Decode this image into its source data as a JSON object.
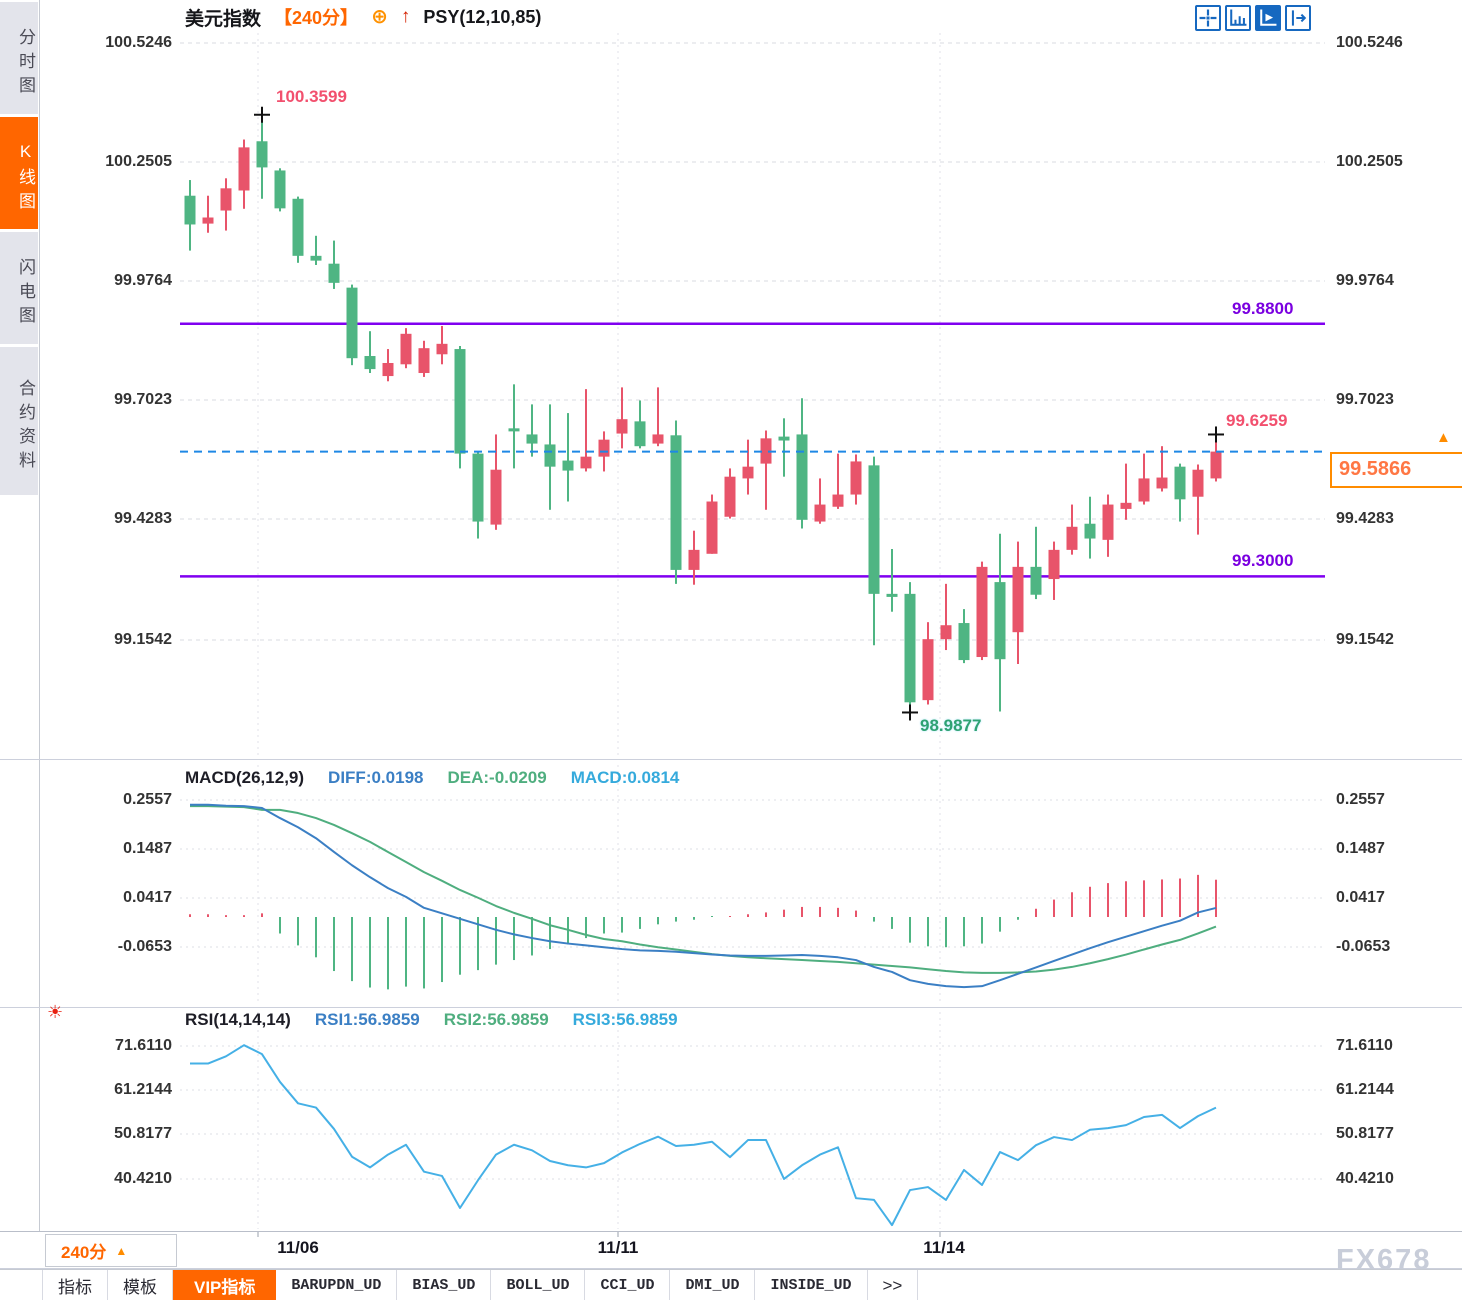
{
  "watermark": {
    "text": "FX678"
  },
  "sidebar": {
    "tabs": [
      {
        "label": "分时图",
        "active": false
      },
      {
        "label": "K线图",
        "active": true
      },
      {
        "label": "闪电图",
        "active": false
      },
      {
        "label": "合约资料",
        "active": false
      }
    ]
  },
  "header": {
    "symbol": "美元指数",
    "period": "【240分】",
    "plus_icon": "⊕",
    "arrow_icon": "↑",
    "indicator": "PSY(12,10,85)"
  },
  "toolbar": {
    "icons": [
      "crosshair-tool",
      "axis-scale-tool",
      "auto-view-tool",
      "jump-latest-tool"
    ],
    "active_index": 2
  },
  "main_chart": {
    "y_axis_labels": [
      "100.5246",
      "100.2505",
      "99.9764",
      "99.7023",
      "99.4283",
      "99.1542"
    ],
    "level_labels": {
      "upper": "99.8800",
      "lower": "99.3000"
    },
    "annotations": {
      "high": "100.3599",
      "last_high": "99.6259",
      "low": "98.9877"
    },
    "current_price": {
      "label": "99.5866",
      "marker_icon": "▲"
    }
  },
  "macd_panel": {
    "title": "MACD(26,12,9)",
    "diff_label": "DIFF:0.0198",
    "dea_label": "DEA:-0.0209",
    "macd_label": "MACD:0.0814",
    "y_axis_labels": [
      "0.2557",
      "0.1487",
      "0.0417",
      "-0.0653"
    ]
  },
  "rsi_panel": {
    "title": "RSI(14,14,14)",
    "rsi1_label": "RSI1:56.9859",
    "rsi2_label": "RSI2:56.9859",
    "rsi3_label": "RSI3:56.9859",
    "hot_icon": "☀",
    "y_axis_labels": [
      "71.6110",
      "61.2144",
      "50.8177",
      "40.4210"
    ]
  },
  "x_axis": {
    "period_label": "240分",
    "period_arrow": "▲",
    "dates": [
      "11/06",
      "11/11",
      "11/14"
    ]
  },
  "bottom_tabs": [
    {
      "label": "指标",
      "style": "cn",
      "active": false
    },
    {
      "label": "模板",
      "style": "cn",
      "active": false
    },
    {
      "label": "VIP指标",
      "style": "cn",
      "active": true
    },
    {
      "label": "BARUPDN_UD",
      "style": "mono",
      "active": false
    },
    {
      "label": "BIAS_UD",
      "style": "mono",
      "active": false
    },
    {
      "label": "BOLL_UD",
      "style": "mono",
      "active": false
    },
    {
      "label": "CCI_UD",
      "style": "mono",
      "active": false
    },
    {
      "label": "DMI_UD",
      "style": "mono",
      "active": false
    },
    {
      "label": "INSIDE_UD",
      "style": "mono",
      "active": false
    },
    {
      "label": ">>",
      "style": "cn",
      "active": false
    }
  ],
  "chart_data": {
    "type": "candlestick",
    "symbol": "美元指数",
    "interval": "240分",
    "x_date_ticks": [
      "11/06",
      "11/11",
      "11/14"
    ],
    "y_axis_ticks": [
      100.5246,
      100.2505,
      99.9764,
      99.7023,
      99.4283,
      99.1542
    ],
    "hlines": [
      99.88,
      99.3
    ],
    "last_price": 99.5866,
    "high_annotation": 100.3599,
    "low_annotation": 98.9877,
    "last_high_annotation": 99.6259,
    "up_color": "#e8546a",
    "down_color": "#4fb583",
    "ohlc": [
      [
        100.174,
        100.21,
        100.048,
        100.108
      ],
      [
        100.11,
        100.174,
        100.089,
        100.124
      ],
      [
        100.14,
        100.214,
        100.094,
        100.191
      ],
      [
        100.186,
        100.303,
        100.144,
        100.285
      ],
      [
        100.299,
        100.3599,
        100.167,
        100.239
      ],
      [
        100.232,
        100.237,
        100.138,
        100.145
      ],
      [
        100.167,
        100.172,
        100.02,
        100.036
      ],
      [
        100.036,
        100.082,
        100.015,
        100.025
      ],
      [
        100.018,
        100.071,
        99.96,
        99.974
      ],
      [
        99.963,
        99.97,
        99.785,
        99.801
      ],
      [
        99.806,
        99.863,
        99.767,
        99.776
      ],
      [
        99.76,
        99.822,
        99.748,
        99.79
      ],
      [
        99.787,
        99.87,
        99.778,
        99.857
      ],
      [
        99.767,
        99.841,
        99.758,
        99.824
      ],
      [
        99.81,
        99.875,
        99.787,
        99.834
      ],
      [
        99.822,
        99.829,
        99.548,
        99.582
      ],
      [
        99.582,
        99.587,
        99.387,
        99.426
      ],
      [
        99.419,
        99.626,
        99.407,
        99.545
      ],
      [
        99.64,
        99.741,
        99.548,
        99.633
      ],
      [
        99.626,
        99.695,
        99.575,
        99.605
      ],
      [
        99.603,
        99.695,
        99.453,
        99.552
      ],
      [
        99.566,
        99.675,
        99.472,
        99.543
      ],
      [
        99.548,
        99.73,
        99.541,
        99.575
      ],
      [
        99.575,
        99.633,
        99.541,
        99.614
      ],
      [
        99.628,
        99.734,
        99.594,
        99.661
      ],
      [
        99.656,
        99.704,
        99.594,
        99.599
      ],
      [
        99.605,
        99.734,
        99.599,
        99.626
      ],
      [
        99.624,
        99.658,
        99.283,
        99.315
      ],
      [
        99.315,
        99.405,
        99.281,
        99.361
      ],
      [
        99.352,
        99.488,
        99.352,
        99.472
      ],
      [
        99.437,
        99.548,
        99.433,
        99.529
      ],
      [
        99.525,
        99.614,
        99.488,
        99.552
      ],
      [
        99.559,
        99.635,
        99.453,
        99.617
      ],
      [
        99.621,
        99.663,
        99.529,
        99.612
      ],
      [
        99.626,
        99.709,
        99.41,
        99.43
      ],
      [
        99.426,
        99.525,
        99.421,
        99.465
      ],
      [
        99.46,
        99.582,
        99.455,
        99.488
      ],
      [
        99.488,
        99.58,
        99.465,
        99.564
      ],
      [
        99.555,
        99.575,
        99.142,
        99.26
      ],
      [
        99.26,
        99.363,
        99.219,
        99.253
      ],
      [
        99.26,
        99.287,
        98.9877,
        99.011
      ],
      [
        99.016,
        99.195,
        99.006,
        99.156
      ],
      [
        99.156,
        99.283,
        99.131,
        99.188
      ],
      [
        99.193,
        99.225,
        99.101,
        99.108
      ],
      [
        99.115,
        99.334,
        99.108,
        99.322
      ],
      [
        99.287,
        99.398,
        98.99,
        99.11
      ],
      [
        99.172,
        99.38,
        99.099,
        99.322
      ],
      [
        99.322,
        99.414,
        99.248,
        99.258
      ],
      [
        99.294,
        99.38,
        99.246,
        99.361
      ],
      [
        99.361,
        99.465,
        99.35,
        99.414
      ],
      [
        99.421,
        99.483,
        99.341,
        99.387
      ],
      [
        99.384,
        99.488,
        99.345,
        99.465
      ],
      [
        99.455,
        99.559,
        99.43,
        99.469
      ],
      [
        99.472,
        99.582,
        99.465,
        99.525
      ],
      [
        99.502,
        99.599,
        99.495,
        99.527
      ],
      [
        99.552,
        99.559,
        99.426,
        99.477
      ],
      [
        99.483,
        99.557,
        99.396,
        99.545
      ],
      [
        99.525,
        99.6259,
        99.518,
        99.5866
      ]
    ],
    "macd": {
      "params": [
        26,
        12,
        9
      ],
      "diff_last": 0.0198,
      "dea_last": -0.0209,
      "macd_last": 0.0814,
      "y_ticks": [
        0.2557,
        0.1487,
        0.0417,
        -0.0653
      ],
      "histogram_rule": "2*(diff-dea)",
      "diff": [
        0.245,
        0.245,
        0.243,
        0.242,
        0.238,
        0.216,
        0.196,
        0.172,
        0.142,
        0.113,
        0.087,
        0.063,
        0.044,
        0.02,
        0.008,
        -0.004,
        -0.016,
        -0.028,
        -0.038,
        -0.046,
        -0.053,
        -0.058,
        -0.062,
        -0.066,
        -0.07,
        -0.073,
        -0.074,
        -0.076,
        -0.079,
        -0.082,
        -0.084,
        -0.085,
        -0.085,
        -0.084,
        -0.083,
        -0.085,
        -0.088,
        -0.094,
        -0.109,
        -0.12,
        -0.138,
        -0.146,
        -0.151,
        -0.153,
        -0.151,
        -0.138,
        -0.124,
        -0.11,
        -0.096,
        -0.082,
        -0.068,
        -0.055,
        -0.043,
        -0.031,
        -0.019,
        -0.008,
        0.01,
        0.0198
      ],
      "dea": [
        0.242,
        0.242,
        0.241,
        0.24,
        0.234,
        0.234,
        0.227,
        0.216,
        0.201,
        0.183,
        0.164,
        0.142,
        0.12,
        0.098,
        0.079,
        0.059,
        0.042,
        0.024,
        0.009,
        -0.004,
        -0.018,
        -0.028,
        -0.039,
        -0.048,
        -0.053,
        -0.06,
        -0.066,
        -0.071,
        -0.076,
        -0.081,
        -0.085,
        -0.088,
        -0.09,
        -0.092,
        -0.094,
        -0.096,
        -0.098,
        -0.101,
        -0.104,
        -0.107,
        -0.11,
        -0.114,
        -0.118,
        -0.121,
        -0.122,
        -0.122,
        -0.121,
        -0.119,
        -0.115,
        -0.109,
        -0.101,
        -0.092,
        -0.082,
        -0.071,
        -0.06,
        -0.05,
        -0.036,
        -0.0209
      ]
    },
    "rsi": {
      "params": [
        14,
        14,
        14
      ],
      "rsi_last": 56.9859,
      "y_ticks": [
        71.611,
        61.2144,
        50.8177,
        40.421
      ],
      "values": [
        67.3,
        67.3,
        69.0,
        71.6,
        69.5,
        63.0,
        58.0,
        57.0,
        52.0,
        45.5,
        43.0,
        46.0,
        48.3,
        42.0,
        41.0,
        33.5,
        40.0,
        46.0,
        48.3,
        47.0,
        44.5,
        43.5,
        43.0,
        44.0,
        46.5,
        48.5,
        50.2,
        48.0,
        48.3,
        49.0,
        45.4,
        49.4,
        49.4,
        40.3,
        43.5,
        46.0,
        47.7,
        35.8,
        35.4,
        29.5,
        37.7,
        38.4,
        35.4,
        42.4,
        38.9,
        46.6,
        44.7,
        48.2,
        50.1,
        49.4,
        51.8,
        52.2,
        52.9,
        54.8,
        55.3,
        52.2,
        55.0,
        56.99
      ]
    }
  }
}
